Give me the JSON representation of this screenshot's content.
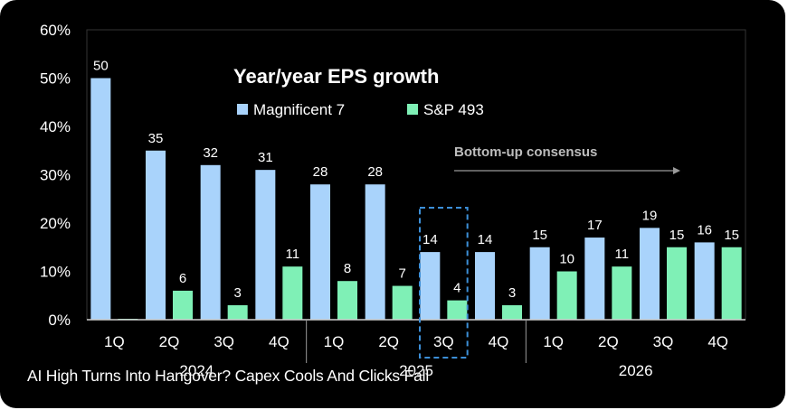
{
  "caption": "AI High Turns Into Hangover? Capex Cools And Clicks Fall",
  "chart_data": {
    "type": "bar",
    "title": "Year/year EPS growth",
    "annotation": "Bottom-up consensus",
    "categories": [
      "1Q",
      "2Q",
      "3Q",
      "4Q",
      "1Q",
      "2Q",
      "3Q",
      "4Q",
      "1Q",
      "2Q",
      "3Q",
      "4Q"
    ],
    "year_groups": [
      {
        "label": "2024",
        "count": 4
      },
      {
        "label": "2025",
        "count": 4
      },
      {
        "label": "2026",
        "count": 4
      }
    ],
    "series": [
      {
        "name": "Magnificent 7",
        "color": "#a9d3fb",
        "values": [
          50,
          35,
          32,
          31,
          28,
          28,
          14,
          14,
          15,
          17,
          19,
          16
        ]
      },
      {
        "name": "S&P 493",
        "color": "#7ff0b6",
        "values": [
          0,
          6,
          3,
          11,
          8,
          7,
          4,
          3,
          10,
          11,
          15,
          15
        ]
      }
    ],
    "highlighted_index": 6,
    "y_ticks": [
      "0%",
      "10%",
      "20%",
      "30%",
      "40%",
      "50%",
      "60%"
    ],
    "ylim": [
      0,
      60
    ],
    "legend": "top"
  }
}
